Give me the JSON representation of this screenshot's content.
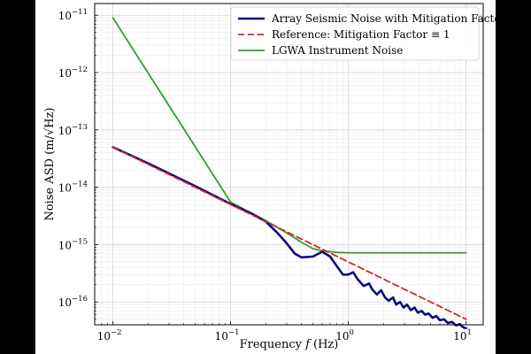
{
  "chart_data": {
    "type": "line",
    "xscale": "log",
    "yscale": "log",
    "xlim": [
      0.007,
      14
    ],
    "ylim": [
      4e-17,
      1.6e-11
    ],
    "xlabel_prefix": "Frequency ",
    "xlabel_var": "f",
    "xlabel_suffix": " (Hz)",
    "ylabel": "Noise ASD (m/√Hz)",
    "grid": true,
    "legend_position": "top-right",
    "x_major_ticks": [
      {
        "value": 0.01,
        "base": "10",
        "exp": "−2"
      },
      {
        "value": 0.1,
        "base": "10",
        "exp": "−1"
      },
      {
        "value": 1,
        "base": "10",
        "exp": "0"
      },
      {
        "value": 10,
        "base": "10",
        "exp": "1"
      }
    ],
    "y_major_ticks": [
      {
        "value": 1e-16,
        "base": "10",
        "exp": "−16"
      },
      {
        "value": 1e-15,
        "base": "10",
        "exp": "−15"
      },
      {
        "value": 1e-14,
        "base": "10",
        "exp": "−14"
      },
      {
        "value": 1e-13,
        "base": "10",
        "exp": "−13"
      },
      {
        "value": 1e-12,
        "base": "10",
        "exp": "−12"
      },
      {
        "value": 1e-11,
        "base": "10",
        "exp": "−11"
      }
    ],
    "series": [
      {
        "name": "Array Seismic Noise with Mitigation Factor",
        "color": "#0b0b82",
        "style": "solid",
        "points": [
          [
            0.01,
            5e-14
          ],
          [
            0.02,
            2.6e-14
          ],
          [
            0.05,
            1.05e-14
          ],
          [
            0.1,
            5.1e-15
          ],
          [
            0.15,
            3.5e-15
          ],
          [
            0.2,
            2.5e-15
          ],
          [
            0.25,
            1.6e-15
          ],
          [
            0.3,
            1.05e-15
          ],
          [
            0.35,
            7e-16
          ],
          [
            0.4,
            6e-16
          ],
          [
            0.5,
            6.2e-16
          ],
          [
            0.6,
            7.5e-16
          ],
          [
            0.7,
            6.2e-16
          ],
          [
            0.8,
            4.2e-16
          ],
          [
            0.9,
            3e-16
          ],
          [
            1.0,
            3e-16
          ],
          [
            1.1,
            3.3e-16
          ],
          [
            1.2,
            2.5e-16
          ],
          [
            1.35,
            1.9e-16
          ],
          [
            1.5,
            2.1e-16
          ],
          [
            1.6,
            1.65e-16
          ],
          [
            1.75,
            1.35e-16
          ],
          [
            1.9,
            1.6e-16
          ],
          [
            2.05,
            1.2e-16
          ],
          [
            2.2,
            1.05e-16
          ],
          [
            2.4,
            1.2e-16
          ],
          [
            2.55,
            9e-17
          ],
          [
            2.75,
            1e-16
          ],
          [
            2.95,
            8e-17
          ],
          [
            3.15,
            9e-17
          ],
          [
            3.4,
            7.2e-17
          ],
          [
            3.65,
            8e-17
          ],
          [
            3.9,
            6.5e-17
          ],
          [
            4.2,
            7e-17
          ],
          [
            4.5,
            6e-17
          ],
          [
            4.8,
            6.3e-17
          ],
          [
            5.2,
            5.3e-17
          ],
          [
            5.6,
            5.7e-17
          ],
          [
            6.0,
            4.8e-17
          ],
          [
            6.5,
            5e-17
          ],
          [
            7.0,
            4.3e-17
          ],
          [
            7.6,
            4.5e-17
          ],
          [
            8.2,
            3.9e-17
          ],
          [
            8.8,
            4.1e-17
          ],
          [
            9.5,
            3.6e-17
          ],
          [
            10,
            3.5e-17
          ]
        ]
      },
      {
        "name": "Reference: Mitigation Factor ≡ 1",
        "color": "#d62728",
        "style": "dashed",
        "points": [
          [
            0.01,
            5e-14
          ],
          [
            10,
            5e-17
          ]
        ]
      },
      {
        "name": "LGWA Instrument Noise",
        "color": "#2ca02c",
        "style": "solid",
        "points": [
          [
            0.01,
            9e-12
          ],
          [
            0.1,
            5.5e-15
          ],
          [
            0.2,
            2.6e-15
          ],
          [
            0.3,
            1.6e-15
          ],
          [
            0.4,
            1.1e-15
          ],
          [
            0.5,
            8.5e-16
          ],
          [
            0.6,
            7.8e-16
          ],
          [
            0.8,
            7.3e-16
          ],
          [
            1.0,
            7.2e-16
          ],
          [
            10,
            7.2e-16
          ]
        ]
      }
    ]
  }
}
